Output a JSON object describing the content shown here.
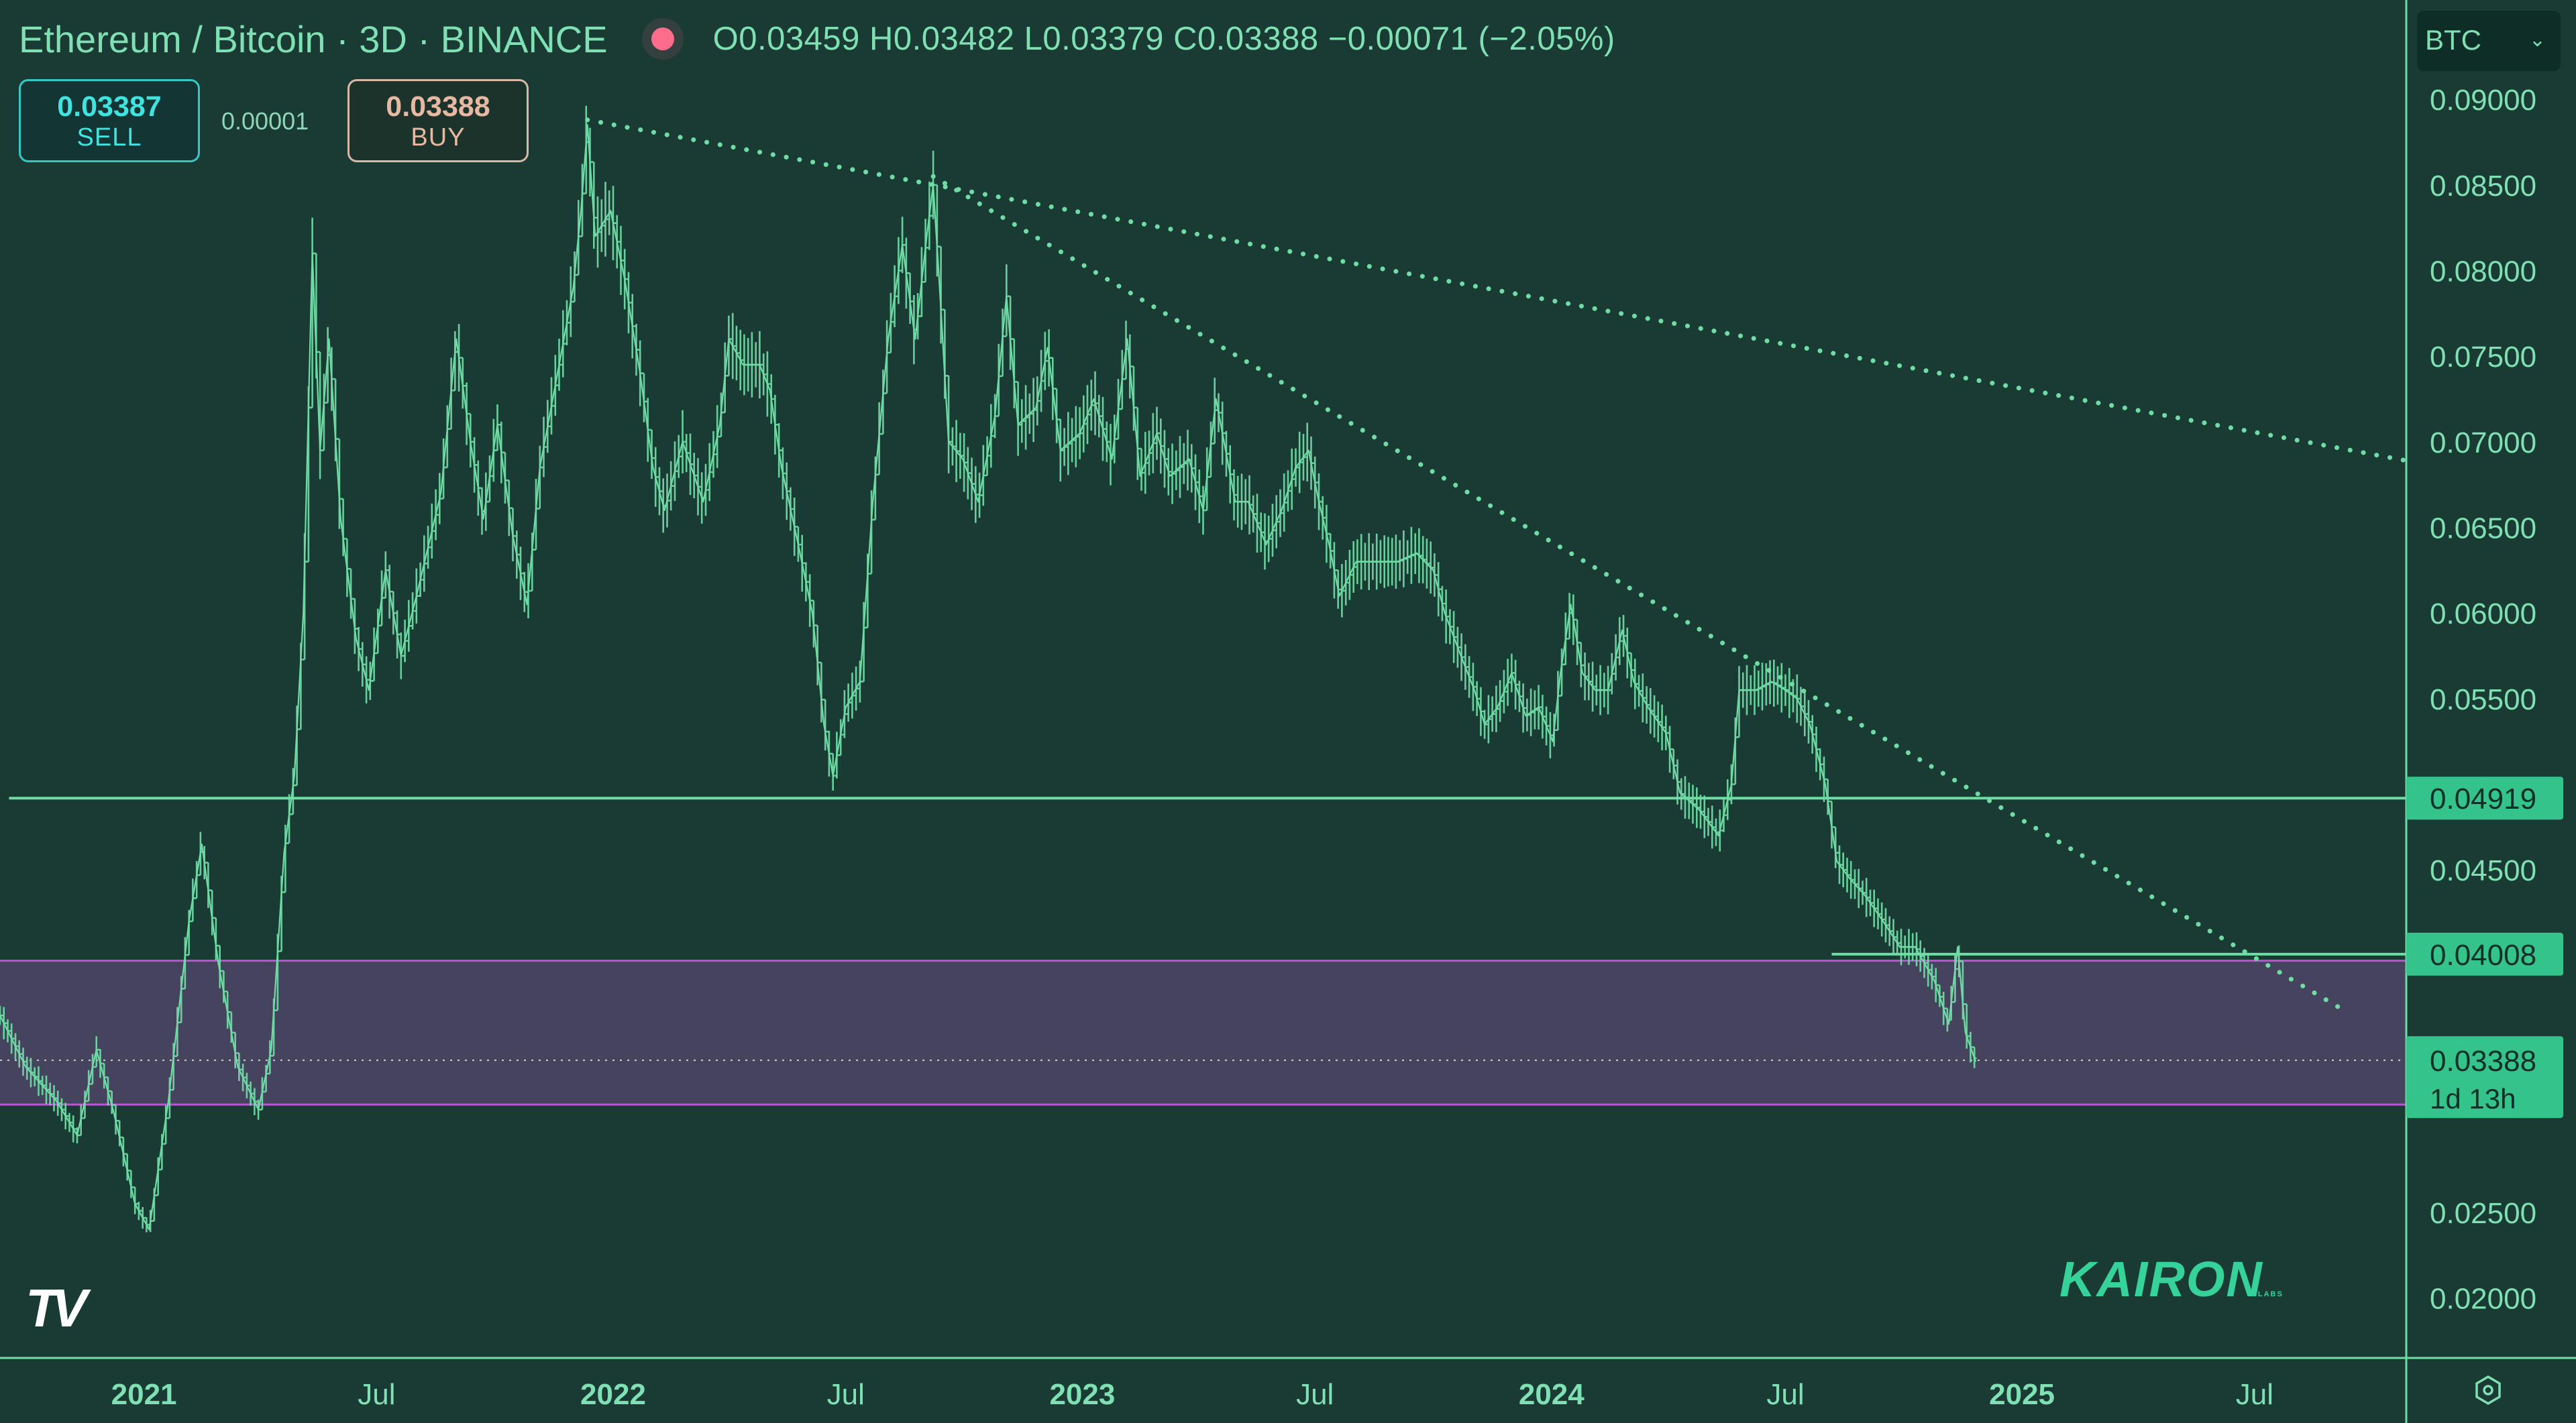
{
  "header": {
    "title": "Ethereum / Bitcoin · 3D · BINANCE",
    "ohlc": "O0.03459 H0.03482 L0.03379 C0.03388 −0.00071 (−2.05%)"
  },
  "trade": {
    "sell_price": "0.03387",
    "sell_label": "SELL",
    "spread": "0.00001",
    "buy_price": "0.03388",
    "buy_label": "BUY"
  },
  "symbol_selector": "BTC",
  "watermark": "KAIRON",
  "watermark_sub": "LABS",
  "colors": {
    "background": "#193b34",
    "line": "#6fdca5",
    "zone_fill": "#4a4562",
    "zone_border": "#c04fd9",
    "price_tag": "#34c48b"
  },
  "chart_data": {
    "type": "line",
    "title": "Ethereum / Bitcoin · 3D · BINANCE",
    "y_axis": {
      "ticks": [
        "0.09000",
        "0.08500",
        "0.08000",
        "0.07500",
        "0.07000",
        "0.06500",
        "0.06000",
        "0.05500",
        "0.04500",
        "0.02500",
        "0.02000"
      ],
      "tick_values": [
        0.09,
        0.085,
        0.08,
        0.075,
        0.07,
        0.065,
        0.06,
        0.055,
        0.045,
        0.025,
        0.02
      ],
      "ylim": [
        0.0165,
        0.0958
      ],
      "position": "right"
    },
    "x_axis": {
      "ticks": [
        "2021",
        "Jul",
        "2022",
        "Jul",
        "2023",
        "Jul",
        "2024",
        "Jul",
        "2025",
        "Jul"
      ],
      "tick_values": [
        "2021-01-01",
        "2021-07-01",
        "2022-01-01",
        "2022-07-01",
        "2023-01-01",
        "2023-07-01",
        "2024-01-01",
        "2024-07-01",
        "2025-01-01",
        "2025-07-01"
      ],
      "xlim": [
        "2020-09-11",
        "2025-10-27"
      ]
    },
    "series": [
      {
        "points": [
          [
            "2020-09-11",
            0.0365
          ],
          [
            "2020-10-01",
            0.0335
          ],
          [
            "2020-10-25",
            0.0315
          ],
          [
            "2020-11-10",
            0.0295
          ],
          [
            "2020-11-25",
            0.0345
          ],
          [
            "2020-12-08",
            0.031
          ],
          [
            "2020-12-25",
            0.0255
          ],
          [
            "2021-01-05",
            0.024
          ],
          [
            "2021-01-20",
            0.0315
          ],
          [
            "2021-02-05",
            0.042
          ],
          [
            "2021-02-15",
            0.0465
          ],
          [
            "2021-02-28",
            0.0395
          ],
          [
            "2021-03-15",
            0.0335
          ],
          [
            "2021-03-31",
            0.031
          ],
          [
            "2021-04-10",
            0.0345
          ],
          [
            "2021-04-20",
            0.046
          ],
          [
            "2021-04-28",
            0.0505
          ],
          [
            "2021-05-05",
            0.06
          ],
          [
            "2021-05-12",
            0.081
          ],
          [
            "2021-05-18",
            0.0695
          ],
          [
            "2021-05-25",
            0.076
          ],
          [
            "2021-06-03",
            0.0655
          ],
          [
            "2021-06-15",
            0.0585
          ],
          [
            "2021-06-25",
            0.0555
          ],
          [
            "2021-07-08",
            0.0625
          ],
          [
            "2021-07-20",
            0.0575
          ],
          [
            "2021-08-01",
            0.061
          ],
          [
            "2021-08-20",
            0.067
          ],
          [
            "2021-09-01",
            0.076
          ],
          [
            "2021-09-12",
            0.07
          ],
          [
            "2021-09-22",
            0.0655
          ],
          [
            "2021-10-03",
            0.071
          ],
          [
            "2021-10-15",
            0.0645
          ],
          [
            "2021-10-26",
            0.0605
          ],
          [
            "2021-11-05",
            0.0685
          ],
          [
            "2021-11-20",
            0.0745
          ],
          [
            "2021-12-01",
            0.079
          ],
          [
            "2021-12-07",
            0.0835
          ],
          [
            "2021-12-12",
            0.0885
          ],
          [
            "2021-12-18",
            0.082
          ],
          [
            "2021-12-30",
            0.0835
          ],
          [
            "2022-01-10",
            0.0795
          ],
          [
            "2022-01-22",
            0.074
          ],
          [
            "2022-02-01",
            0.0685
          ],
          [
            "2022-02-10",
            0.066
          ],
          [
            "2022-02-24",
            0.07
          ],
          [
            "2022-03-12",
            0.0665
          ],
          [
            "2022-03-25",
            0.071
          ],
          [
            "2022-04-01",
            0.076
          ],
          [
            "2022-04-12",
            0.0745
          ],
          [
            "2022-04-25",
            0.0745
          ],
          [
            "2022-05-03",
            0.073
          ],
          [
            "2022-05-12",
            0.0685
          ],
          [
            "2022-05-25",
            0.064
          ],
          [
            "2022-06-05",
            0.06
          ],
          [
            "2022-06-14",
            0.0535
          ],
          [
            "2022-06-21",
            0.0505
          ],
          [
            "2022-07-01",
            0.0545
          ],
          [
            "2022-07-12",
            0.056
          ],
          [
            "2022-07-22",
            0.0665
          ],
          [
            "2022-08-03",
            0.076
          ],
          [
            "2022-08-14",
            0.0815
          ],
          [
            "2022-08-24",
            0.076
          ],
          [
            "2022-09-02",
            0.082
          ],
          [
            "2022-09-07",
            0.085
          ],
          [
            "2022-09-12",
            0.079
          ],
          [
            "2022-09-19",
            0.07
          ],
          [
            "2022-09-30",
            0.069
          ],
          [
            "2022-10-12",
            0.0665
          ],
          [
            "2022-10-25",
            0.0715
          ],
          [
            "2022-11-03",
            0.0785
          ],
          [
            "2022-11-12",
            0.071
          ],
          [
            "2022-11-26",
            0.072
          ],
          [
            "2022-12-05",
            0.0755
          ],
          [
            "2022-12-15",
            0.0695
          ],
          [
            "2022-12-30",
            0.0705
          ],
          [
            "2023-01-10",
            0.0725
          ],
          [
            "2023-01-24",
            0.069
          ],
          [
            "2023-02-05",
            0.076
          ],
          [
            "2023-02-15",
            0.068
          ],
          [
            "2023-02-28",
            0.0705
          ],
          [
            "2023-03-10",
            0.068
          ],
          [
            "2023-03-25",
            0.069
          ],
          [
            "2023-04-05",
            0.066
          ],
          [
            "2023-04-15",
            0.0725
          ],
          [
            "2023-04-30",
            0.0665
          ],
          [
            "2023-05-10",
            0.0665
          ],
          [
            "2023-05-24",
            0.064
          ],
          [
            "2023-06-05",
            0.066
          ],
          [
            "2023-06-16",
            0.0685
          ],
          [
            "2023-06-26",
            0.0695
          ],
          [
            "2023-07-04",
            0.0665
          ],
          [
            "2023-07-12",
            0.064
          ],
          [
            "2023-07-20",
            0.061
          ],
          [
            "2023-08-02",
            0.063
          ],
          [
            "2023-08-18",
            0.063
          ],
          [
            "2023-09-03",
            0.063
          ],
          [
            "2023-09-18",
            0.0635
          ],
          [
            "2023-10-01",
            0.0625
          ],
          [
            "2023-10-10",
            0.06
          ],
          [
            "2023-10-20",
            0.058
          ],
          [
            "2023-11-02",
            0.0555
          ],
          [
            "2023-11-10",
            0.0535
          ],
          [
            "2023-11-20",
            0.0545
          ],
          [
            "2023-12-01",
            0.0565
          ],
          [
            "2023-12-12",
            0.054
          ],
          [
            "2023-12-22",
            0.0545
          ],
          [
            "2024-01-02",
            0.0525
          ],
          [
            "2024-01-08",
            0.0565
          ],
          [
            "2024-01-16",
            0.0605
          ],
          [
            "2024-01-25",
            0.0565
          ],
          [
            "2024-02-04",
            0.0555
          ],
          [
            "2024-02-14",
            0.0555
          ],
          [
            "2024-02-25",
            0.059
          ],
          [
            "2024-03-05",
            0.056
          ],
          [
            "2024-03-16",
            0.0545
          ],
          [
            "2024-03-30",
            0.053
          ],
          [
            "2024-04-10",
            0.0495
          ],
          [
            "2024-04-25",
            0.0485
          ],
          [
            "2024-05-10",
            0.047
          ],
          [
            "2024-05-20",
            0.05
          ],
          [
            "2024-05-26",
            0.0555
          ],
          [
            "2024-06-08",
            0.0555
          ],
          [
            "2024-06-20",
            0.056
          ],
          [
            "2024-07-01",
            0.0555
          ],
          [
            "2024-07-10",
            0.055
          ],
          [
            "2024-07-20",
            0.0535
          ],
          [
            "2024-08-01",
            0.05
          ],
          [
            "2024-08-10",
            0.0455
          ],
          [
            "2024-08-20",
            0.0445
          ],
          [
            "2024-09-01",
            0.0435
          ],
          [
            "2024-09-15",
            0.042
          ],
          [
            "2024-09-28",
            0.0405
          ],
          [
            "2024-10-10",
            0.0405
          ],
          [
            "2024-10-25",
            0.0385
          ],
          [
            "2024-11-05",
            0.036
          ],
          [
            "2024-11-12",
            0.0405
          ],
          [
            "2024-11-18",
            0.0355
          ],
          [
            "2024-11-26",
            0.0338
          ]
        ]
      }
    ],
    "trendlines": [
      {
        "style": "dotted",
        "from": [
          "2021-12-12",
          0.0888
        ],
        "to": [
          "2025-10-27",
          0.0689
        ]
      },
      {
        "style": "dotted",
        "from": [
          "2022-09-07",
          0.0855
        ],
        "to": [
          "2025-09-04",
          0.037
        ]
      }
    ],
    "horizontal_lines": [
      {
        "value": 0.04919,
        "label": "0.04919",
        "from": "2020-09-18"
      },
      {
        "value": 0.04008,
        "label": "0.04008",
        "from": "2024-08-06"
      }
    ],
    "zone": {
      "from_value": 0.0313,
      "to_value": 0.0397
    },
    "last_price": {
      "value": 0.03388,
      "label": "0.03388",
      "countdown": "1d 13h"
    },
    "grid": false,
    "legend": "none"
  }
}
